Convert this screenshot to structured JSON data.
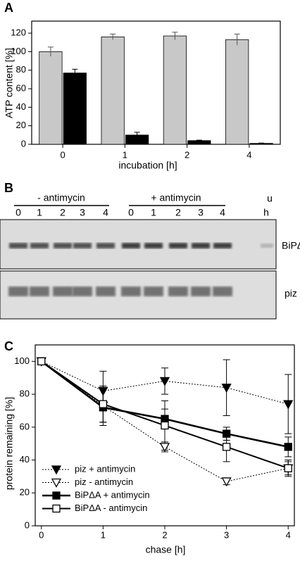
{
  "chart_data": [
    {
      "type": "bar",
      "label": "A",
      "ylabel": "ATP content [%]",
      "xlabel": "incubation [h]",
      "categories": [
        "0",
        "1",
        "2",
        "4"
      ],
      "series": [
        {
          "color": "#c8c8c8",
          "values": [
            100,
            116,
            117,
            113
          ],
          "errors": [
            5,
            3,
            4,
            6
          ]
        },
        {
          "color": "#000000",
          "values": [
            77,
            10,
            4,
            1
          ],
          "errors": [
            4,
            3,
            0.5,
            0.3
          ]
        }
      ],
      "ylim": [
        0,
        133
      ],
      "yticks": [
        0,
        20,
        40,
        60,
        80,
        100,
        120
      ]
    },
    {
      "type": "line",
      "label": "C",
      "ylabel": "protein remaining [%]",
      "xlabel": "chase [h]",
      "x": [
        0,
        1,
        2,
        3,
        4
      ],
      "series": [
        {
          "name": "piz + antimycin",
          "color": "#000000",
          "dash": "dotted",
          "line_width": 1,
          "marker": "triangle-down",
          "filled": true,
          "values": [
            100,
            82,
            88,
            84,
            74
          ],
          "errors": [
            0,
            12,
            8,
            17,
            18
          ]
        },
        {
          "name": "piz - antimycin",
          "color": "#000000",
          "dash": "dotted",
          "line_width": 1,
          "marker": "triangle-down",
          "filled": false,
          "values": [
            100,
            73,
            48,
            27,
            35
          ],
          "errors": [
            0,
            10,
            3,
            2,
            4
          ]
        },
        {
          "name": "BiPΔA + antimycin",
          "color": "#000000",
          "dash": "solid",
          "line_width": 2.5,
          "marker": "square",
          "filled": true,
          "values": [
            100,
            72,
            65,
            56,
            48
          ],
          "errors": [
            0,
            11,
            6,
            4,
            6
          ]
        },
        {
          "name": "BiPΔA - antimycin",
          "color": "#000000",
          "dash": "solid",
          "line_width": 2,
          "marker": "square",
          "filled": false,
          "values": [
            100,
            74,
            61,
            48,
            35
          ],
          "errors": [
            0,
            11,
            15,
            9,
            5
          ]
        }
      ],
      "xlim": [
        -0.1,
        4.1
      ],
      "xticks": [
        0,
        1,
        2,
        3,
        4
      ],
      "ylim": [
        0,
        110
      ],
      "yticks": [
        0,
        20,
        40,
        60,
        80,
        100
      ],
      "legend": "lower-left"
    }
  ],
  "gel": {
    "label": "B",
    "minus": "- antimycin",
    "plus": "+ antimycin",
    "unit": "h",
    "u": "u",
    "lanes": [
      "0",
      "1",
      "2",
      "3",
      "4",
      "0",
      "1",
      "2",
      "3",
      "4"
    ],
    "bands": [
      "BiPΔA",
      "piz"
    ]
  }
}
